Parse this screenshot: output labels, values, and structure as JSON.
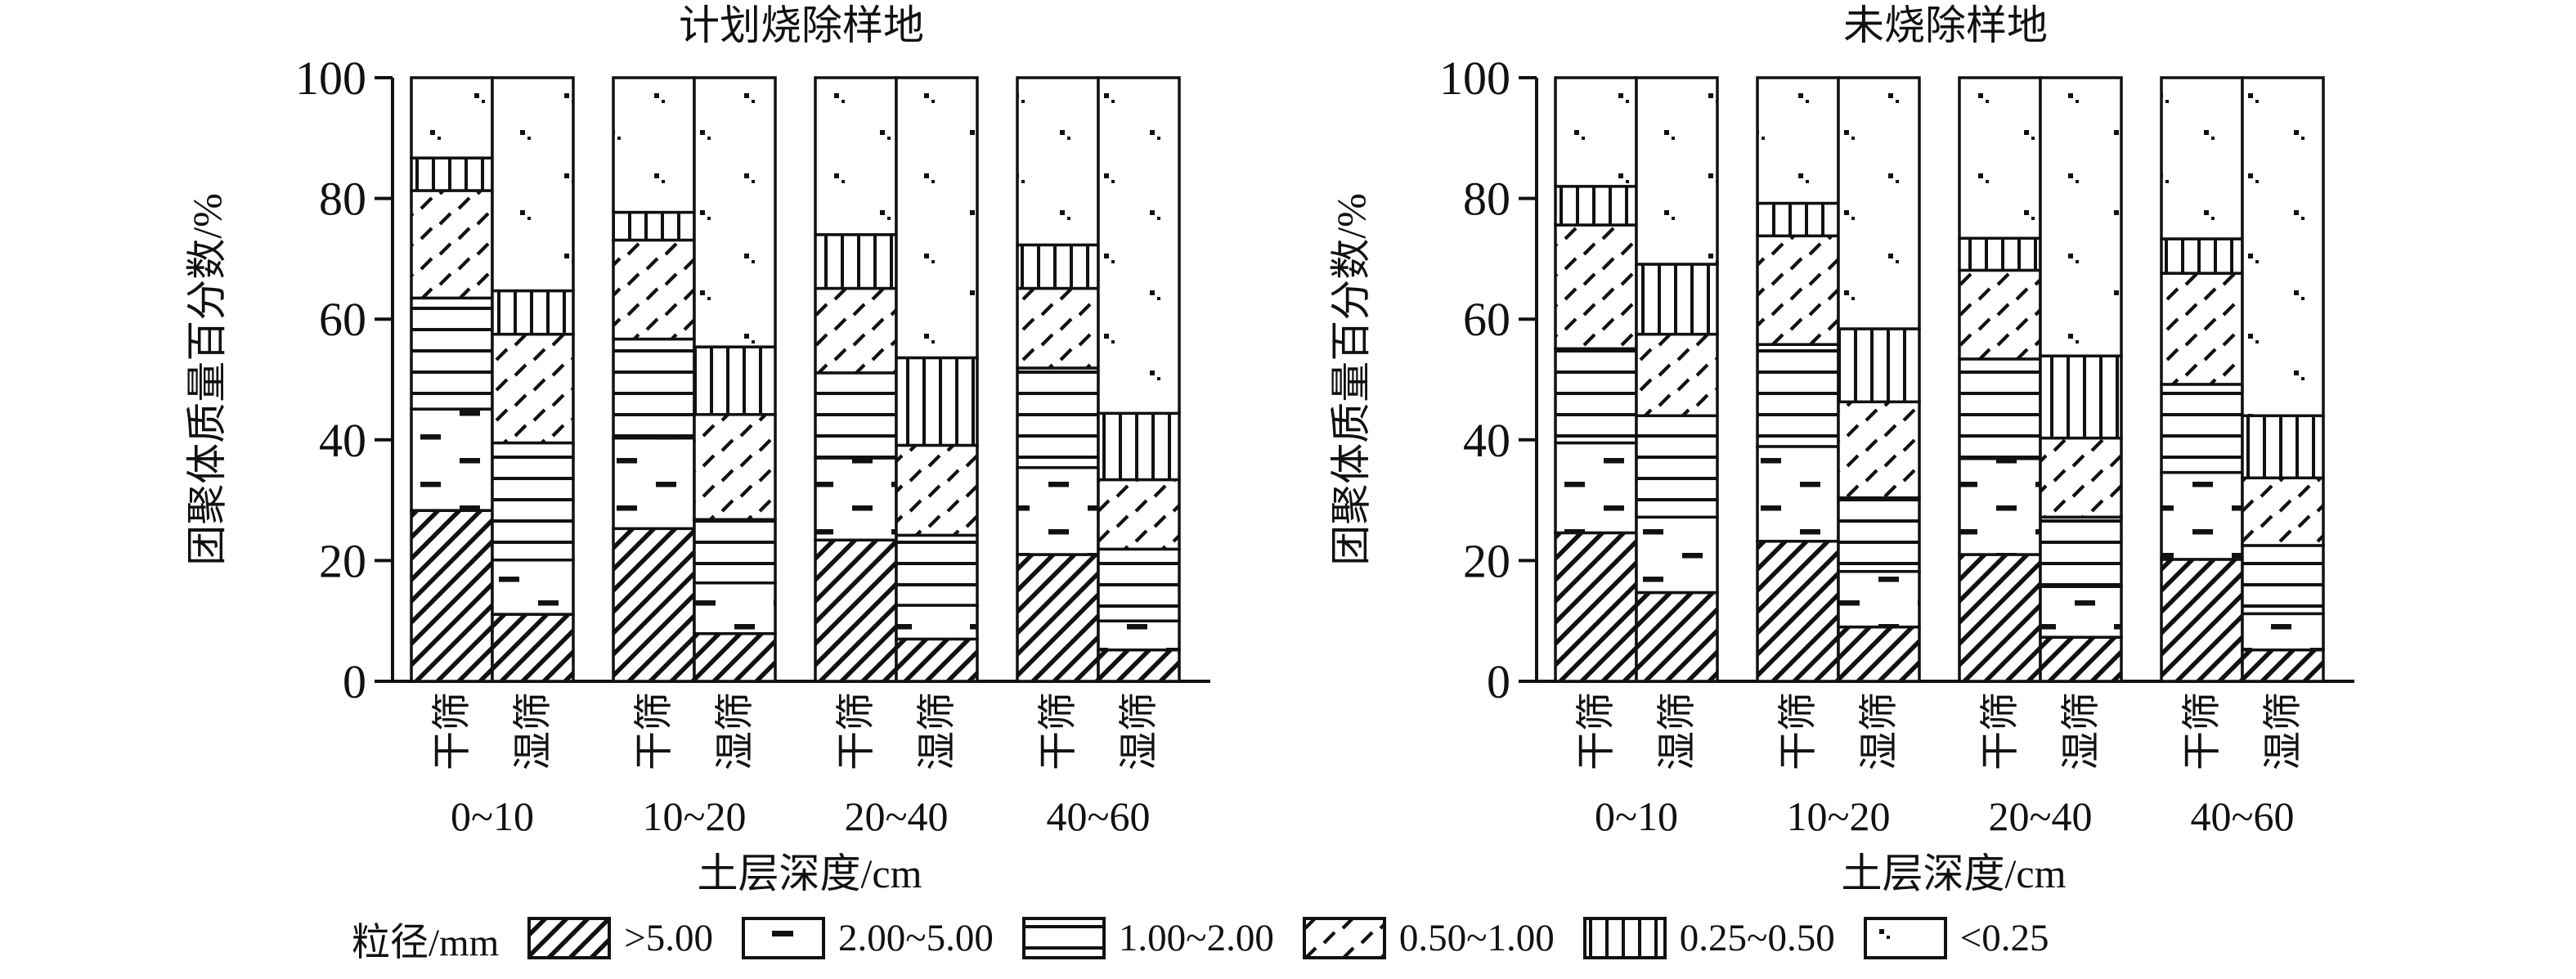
{
  "figure": {
    "background": "#ffffff",
    "ink_color": "#111111",
    "y_axis_label": "团聚体质量百分数/%",
    "x_axis_label": "土层深度/cm",
    "y_ticks": [
      0,
      20,
      40,
      60,
      80,
      100
    ],
    "depth_labels": [
      "0~10",
      "10~20",
      "20~40",
      "40~60"
    ],
    "sieve_labels": [
      "干筛",
      "湿筛"
    ],
    "legend_title": "粒径/mm"
  },
  "chart_data": [
    {
      "type": "bar",
      "stacked": true,
      "title": "计划烧除样地",
      "xlabel": "土层深度/cm",
      "ylabel": "团聚体质量百分数/%",
      "ylim": [
        0,
        100
      ],
      "grid": false,
      "legend_position": "bottom",
      "categories": [
        "0~10 干筛",
        "0~10 湿筛",
        "10~20 干筛",
        "10~20 湿筛",
        "20~40 干筛",
        "20~40 湿筛",
        "40~60 干筛",
        "40~60 湿筛"
      ],
      "series": [
        {
          "name": ">5.00",
          "pattern": "diagonal-hatch",
          "values": [
            28.3,
            11.1,
            25.3,
            7.9,
            23.4,
            7.0,
            21.0,
            5.2
          ]
        },
        {
          "name": "2.00~5.00",
          "pattern": "sparse-dash",
          "values": [
            16.8,
            9.0,
            15.0,
            8.4,
            13.6,
            5.6,
            14.4,
            4.8
          ]
        },
        {
          "name": "1.00~2.00",
          "pattern": "horizontal-lines",
          "values": [
            18.4,
            19.4,
            16.4,
            10.5,
            14.1,
            11.6,
            16.5,
            11.9
          ]
        },
        {
          "name": "0.50~1.00",
          "pattern": "diagonal-dashes",
          "values": [
            17.8,
            18.0,
            16.4,
            17.4,
            14.0,
            14.9,
            13.2,
            11.5
          ]
        },
        {
          "name": "0.25~0.50",
          "pattern": "vertical-lines",
          "values": [
            5.4,
            7.2,
            4.6,
            11.2,
            8.9,
            14.5,
            7.2,
            11.0
          ]
        },
        {
          "name": "<0.25",
          "pattern": "dots",
          "values": [
            13.3,
            35.3,
            22.3,
            44.6,
            26.0,
            46.4,
            27.7,
            55.6
          ]
        }
      ]
    },
    {
      "type": "bar",
      "stacked": true,
      "title": "未烧除样地",
      "xlabel": "土层深度/cm",
      "ylabel": "团聚体质量百分数/%",
      "ylim": [
        0,
        100
      ],
      "grid": false,
      "legend_position": "bottom",
      "categories": [
        "0~10 干筛",
        "0~10 湿筛",
        "10~20 干筛",
        "10~20 湿筛",
        "20~40 干筛",
        "20~40 湿筛",
        "40~60 干筛",
        "40~60 湿筛"
      ],
      "series": [
        {
          "name": ">5.00",
          "pattern": "diagonal-hatch",
          "values": [
            24.6,
            14.7,
            23.2,
            9.0,
            21.0,
            7.3,
            20.2,
            5.2
          ]
        },
        {
          "name": "2.00~5.00",
          "pattern": "sparse-dash",
          "values": [
            14.9,
            12.5,
            15.7,
            9.2,
            15.9,
            8.4,
            14.4,
            6.0
          ]
        },
        {
          "name": "1.00~2.00",
          "pattern": "horizontal-lines",
          "values": [
            15.6,
            16.8,
            16.9,
            12.2,
            16.5,
            11.5,
            14.6,
            11.3
          ]
        },
        {
          "name": "0.50~1.00",
          "pattern": "diagonal-dashes",
          "values": [
            20.5,
            13.5,
            18.0,
            15.9,
            14.7,
            13.1,
            18.4,
            11.2
          ]
        },
        {
          "name": "0.25~0.50",
          "pattern": "vertical-lines",
          "values": [
            6.4,
            11.6,
            5.4,
            12.1,
            5.3,
            13.6,
            5.7,
            10.3
          ]
        },
        {
          "name": "<0.25",
          "pattern": "dots",
          "values": [
            18.0,
            30.9,
            20.8,
            41.6,
            26.6,
            46.1,
            26.7,
            56.0
          ]
        }
      ]
    }
  ]
}
